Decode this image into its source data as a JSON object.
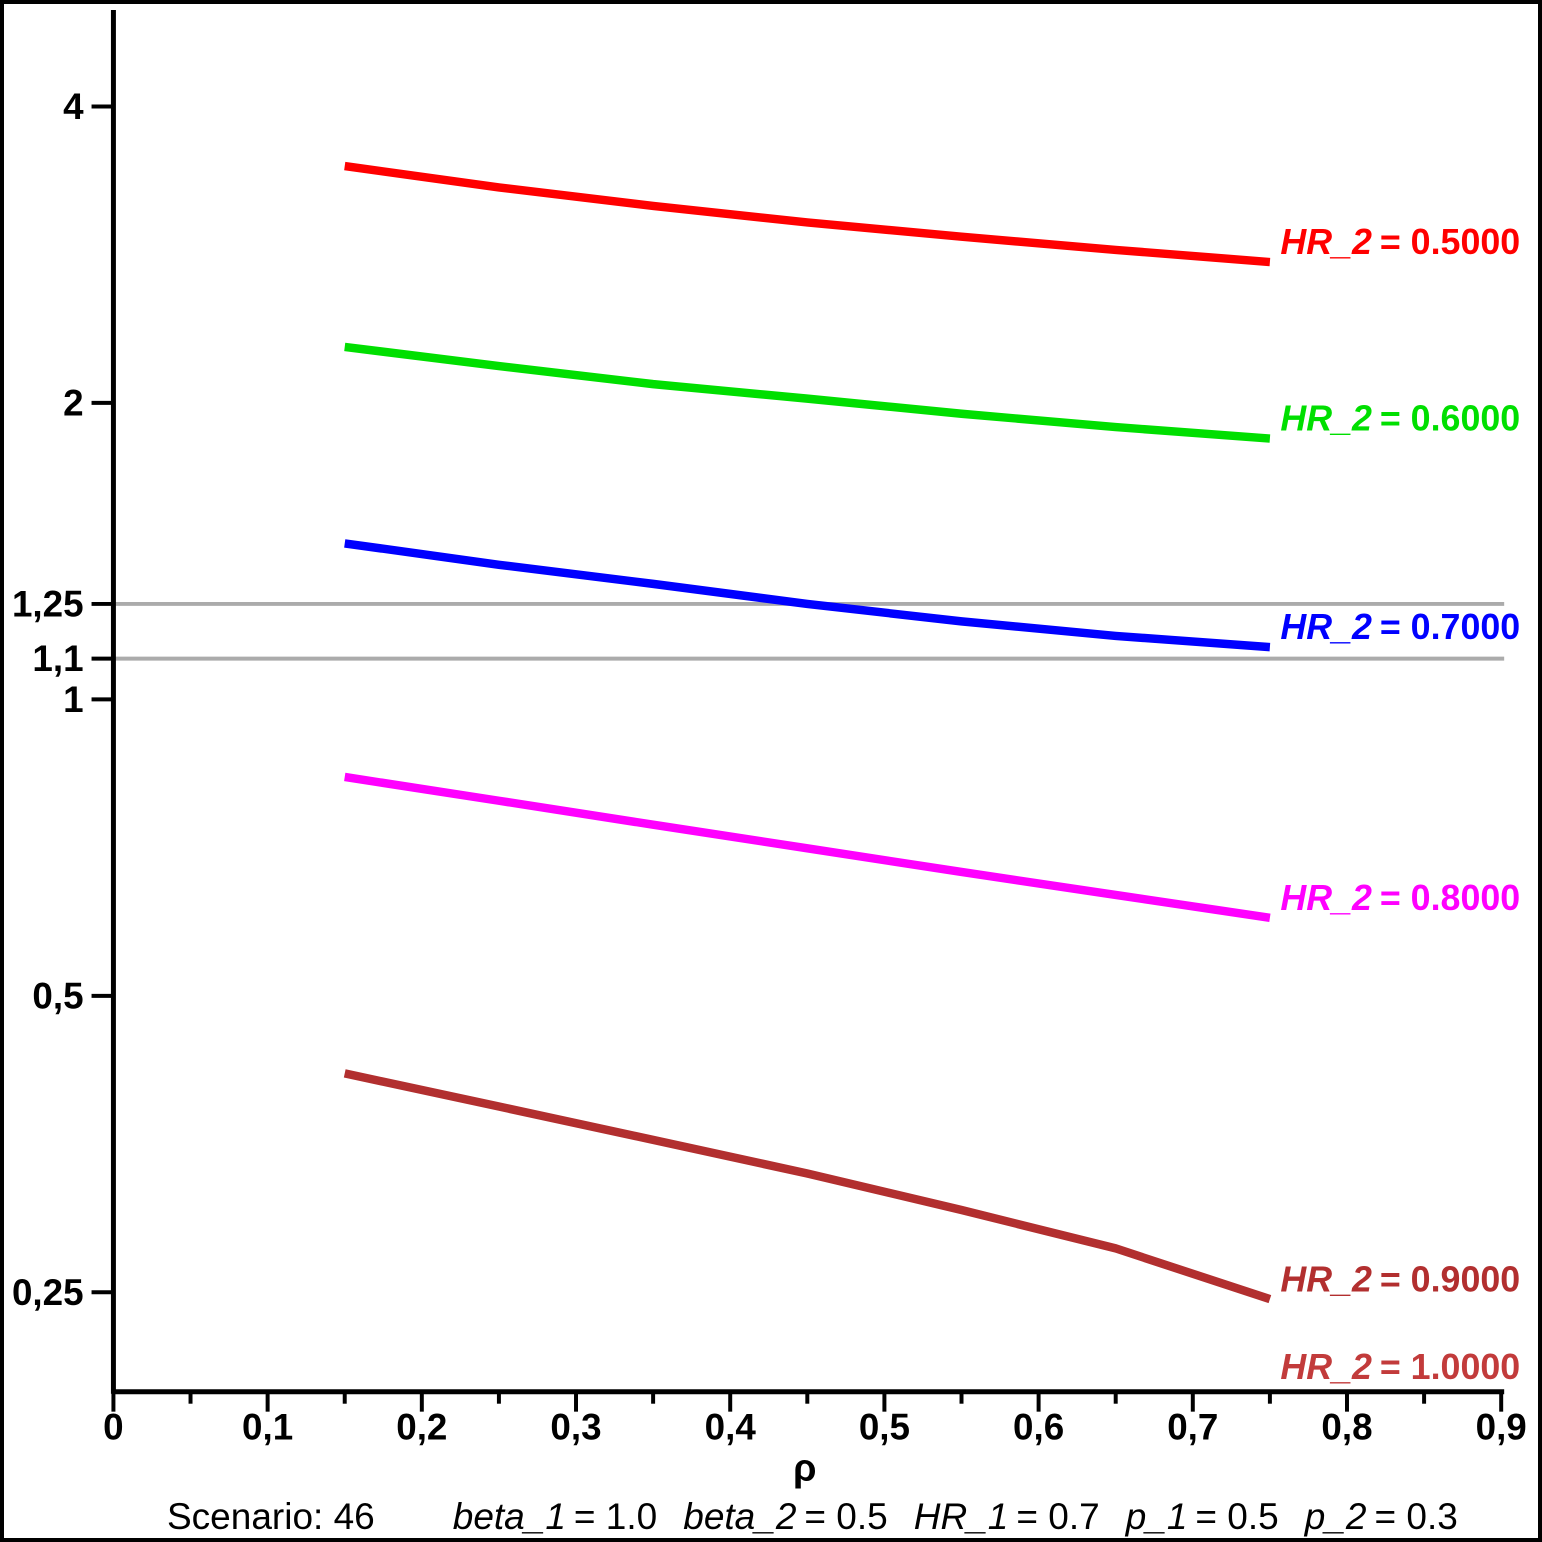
{
  "chart_data": {
    "type": "line",
    "title": "",
    "xlabel": "ρ",
    "ylabel": "",
    "x_scale": "linear",
    "y_scale": "log",
    "x_range": [
      0,
      0.9
    ],
    "y_range": [
      0.21,
      4.6
    ],
    "grid": "off",
    "legend_position": "right-of-curve-end",
    "x": [
      0.15,
      0.25,
      0.35,
      0.45,
      0.55,
      0.65,
      0.75
    ],
    "x_ticks": [
      {
        "v": 0.0,
        "label": "0"
      },
      {
        "v": 0.1,
        "label": "0,1"
      },
      {
        "v": 0.2,
        "label": "0,2"
      },
      {
        "v": 0.3,
        "label": "0,3"
      },
      {
        "v": 0.4,
        "label": "0,4"
      },
      {
        "v": 0.5,
        "label": "0,5"
      },
      {
        "v": 0.6,
        "label": "0,6"
      },
      {
        "v": 0.7,
        "label": "0,7"
      },
      {
        "v": 0.8,
        "label": "0,8"
      },
      {
        "v": 0.9,
        "label": "0,9"
      }
    ],
    "x_minor_tick_step": 0.05,
    "y_ticks": [
      {
        "v": 4,
        "label": "4"
      },
      {
        "v": 2,
        "label": "2"
      },
      {
        "v": 1.25,
        "label": "1,25"
      },
      {
        "v": 1.1,
        "label": "1,1"
      },
      {
        "v": 1,
        "label": "1"
      },
      {
        "v": 0.5,
        "label": "0,5"
      },
      {
        "v": 0.25,
        "label": "0,25"
      }
    ],
    "reference_lines": [
      {
        "v": 1.25,
        "color": "#ABABAB"
      },
      {
        "v": 1.1,
        "color": "#ABABAB"
      }
    ],
    "axis_color": "#000000",
    "series": [
      {
        "name": "HR_2=0.5000",
        "label_var": "HR_2",
        "label_eq": "= 0.5000",
        "color": "#FF0000",
        "values": [
          3.48,
          3.31,
          3.17,
          3.05,
          2.95,
          2.86,
          2.78
        ]
      },
      {
        "name": "HR_2=0.6000",
        "label_var": "HR_2",
        "label_eq": "= 0.6000",
        "color": "#00DF00",
        "values": [
          2.28,
          2.18,
          2.09,
          2.02,
          1.95,
          1.89,
          1.84
        ]
      },
      {
        "name": "HR_2=0.7000",
        "label_var": "HR_2",
        "label_eq": "= 0.7000",
        "color": "#0000FF",
        "values": [
          1.44,
          1.37,
          1.31,
          1.25,
          1.2,
          1.16,
          1.13
        ]
      },
      {
        "name": "HR_2=0.8000",
        "label_var": "HR_2",
        "label_eq": "= 0.8000",
        "color": "#FF00FF",
        "values": [
          0.834,
          0.789,
          0.746,
          0.706,
          0.668,
          0.633,
          0.6
        ]
      },
      {
        "name": "HR_2=0.9000",
        "label_var": "HR_2",
        "label_eq": "= 0.9000",
        "color": "#B22F2F",
        "values": [
          0.417,
          0.386,
          0.357,
          0.33,
          0.303,
          0.277,
          0.246
        ]
      },
      {
        "name": "HR_2=1.0000",
        "label_var": "HR_2",
        "label_eq": "= 1.0000",
        "color": "#C23B3B",
        "values": [],
        "label_value": 0.21
      }
    ]
  },
  "caption": {
    "segments": [
      {
        "text": "Scenario: 46",
        "italic": false,
        "gap_after": 78
      },
      {
        "text": "beta_1",
        "italic": true,
        "gap_after": 8
      },
      {
        "text": "= 1.0",
        "italic": false,
        "gap_after": 26
      },
      {
        "text": "beta_2",
        "italic": true,
        "gap_after": 8
      },
      {
        "text": "= 0.5",
        "italic": false,
        "gap_after": 26
      },
      {
        "text": "HR_1",
        "italic": true,
        "gap_after": 8
      },
      {
        "text": "= 0.7",
        "italic": false,
        "gap_after": 26
      },
      {
        "text": "p_1",
        "italic": true,
        "gap_after": 8
      },
      {
        "text": "= 0.5",
        "italic": false,
        "gap_after": 26
      },
      {
        "text": "p_2",
        "italic": true,
        "gap_after": 8
      },
      {
        "text": "= 0.3",
        "italic": false,
        "gap_after": 0
      }
    ]
  }
}
